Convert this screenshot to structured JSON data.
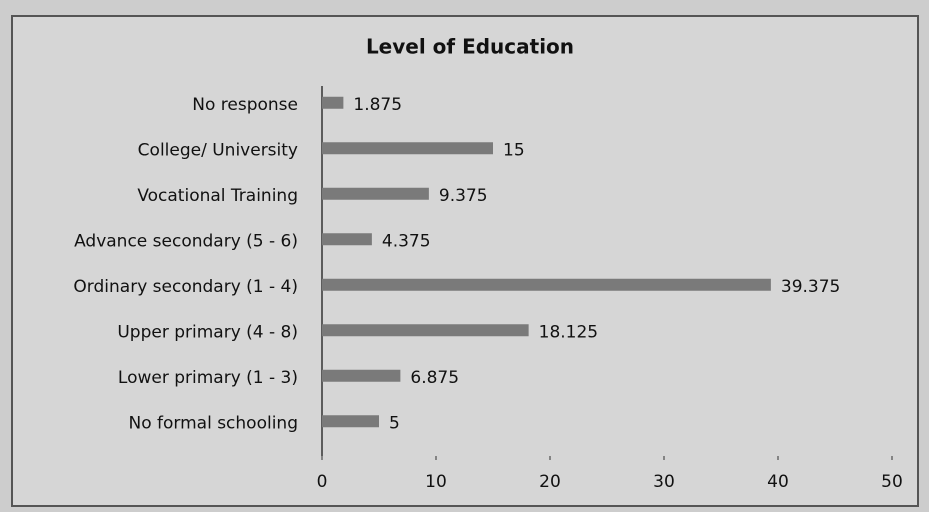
{
  "chart_data": {
    "type": "hbar",
    "title": "Level of Education",
    "categories": [
      "No response",
      "College/ University",
      "Vocational Training",
      "Advance secondary (5 - 6)",
      "Ordinary secondary (1 - 4)",
      "Upper primary (4 - 8)",
      "Lower primary (1 - 3)",
      "No formal schooling"
    ],
    "values": [
      1.875,
      15,
      9.375,
      4.375,
      39.375,
      18.125,
      6.875,
      5
    ],
    "color": "#7a7a7a",
    "xlim": [
      0,
      50
    ],
    "xticks": [
      0,
      10,
      20,
      30,
      40,
      50
    ],
    "grid": false
  }
}
